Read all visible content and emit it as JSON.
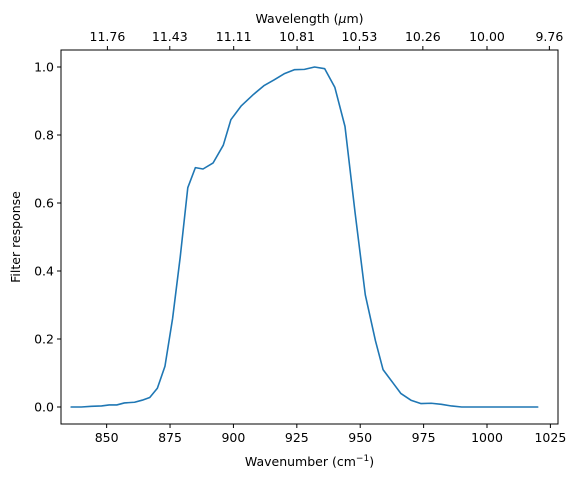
{
  "chart_data": {
    "type": "line",
    "xlabel_main": "Wavenumber (cm",
    "xlabel_sup": "−1",
    "xlabel_close": ")",
    "ylabel": "Filter response",
    "top_xlabel_pre": "Wavelength (",
    "top_xlabel_mu": "μ",
    "top_xlabel_post": "m)",
    "xlim": [
      832,
      1028
    ],
    "ylim": [
      -0.05,
      1.05
    ],
    "x_ticks": [
      850,
      875,
      900,
      925,
      950,
      975,
      1000,
      1025
    ],
    "y_ticks": [
      0.0,
      0.2,
      0.4,
      0.6,
      0.8,
      1.0
    ],
    "y_tick_labels": [
      "0.0",
      "0.2",
      "0.4",
      "0.6",
      "0.8",
      "1.0"
    ],
    "top_ticks": [
      {
        "label": "11.76",
        "wavenumber": 850.3
      },
      {
        "label": "11.43",
        "wavenumber": 874.9
      },
      {
        "label": "11.11",
        "wavenumber": 900.1
      },
      {
        "label": "10.81",
        "wavenumber": 925.1
      },
      {
        "label": "10.53",
        "wavenumber": 949.7
      },
      {
        "label": "10.26",
        "wavenumber": 974.7
      },
      {
        "label": "10.00",
        "wavenumber": 1000.0
      },
      {
        "label": "9.76",
        "wavenumber": 1024.6
      }
    ],
    "grid": false,
    "series": [
      {
        "color": "#1f77b4",
        "x": [
          836,
          840,
          844,
          848,
          851,
          854,
          857,
          861,
          864,
          867,
          870,
          873,
          876,
          879,
          882,
          885,
          888,
          892,
          896,
          899,
          903,
          908,
          912,
          916,
          920,
          924,
          928,
          932,
          936,
          940,
          944,
          948,
          952,
          956,
          959,
          963,
          966,
          970,
          974,
          978,
          982,
          986,
          990,
          994,
          998,
          1002,
          1006,
          1010,
          1014,
          1020
        ],
        "y": [
          0.0,
          0.0,
          0.002,
          0.003,
          0.006,
          0.006,
          0.012,
          0.014,
          0.02,
          0.028,
          0.055,
          0.12,
          0.26,
          0.44,
          0.645,
          0.704,
          0.7,
          0.718,
          0.77,
          0.845,
          0.885,
          0.92,
          0.945,
          0.962,
          0.98,
          0.992,
          0.993,
          1.0,
          0.995,
          0.94,
          0.825,
          0.57,
          0.33,
          0.195,
          0.11,
          0.07,
          0.04,
          0.02,
          0.01,
          0.011,
          0.008,
          0.003,
          0.0,
          0.0,
          0.0,
          0.0,
          0.0,
          0.0,
          0.0,
          0.0
        ]
      }
    ]
  }
}
